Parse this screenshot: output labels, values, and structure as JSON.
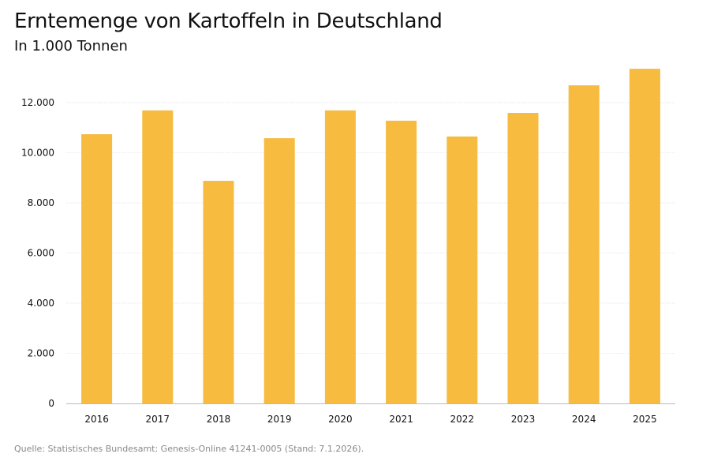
{
  "title": "Erntemenge von Kartoffeln in Deutschland",
  "subtitle": "In 1.000 Tonnen",
  "source": "Quelle: Statistisches Bundesamt: Genesis-Online 41241-0005 (Stand: 7.1.2026).",
  "colors": {
    "bar": "#f6bb3f",
    "grid": "#eeeeee",
    "axis": "#bbbbbb"
  },
  "chart_data": {
    "type": "bar",
    "title": "Erntemenge von Kartoffeln in Deutschland",
    "subtitle": "In 1.000 Tonnen",
    "categories": [
      "2016",
      "2017",
      "2018",
      "2019",
      "2020",
      "2021",
      "2022",
      "2023",
      "2024",
      "2025"
    ],
    "values": [
      10740,
      11690,
      8880,
      10580,
      11690,
      11280,
      10650,
      11590,
      12690,
      13350
    ],
    "ylim": [
      0,
      13500
    ],
    "yticks": [
      0,
      2000,
      4000,
      6000,
      8000,
      10000,
      12000
    ],
    "ytick_labels": [
      "0",
      "2.000",
      "4.000",
      "6.000",
      "8.000",
      "10.000",
      "12.000"
    ],
    "grid": true
  }
}
